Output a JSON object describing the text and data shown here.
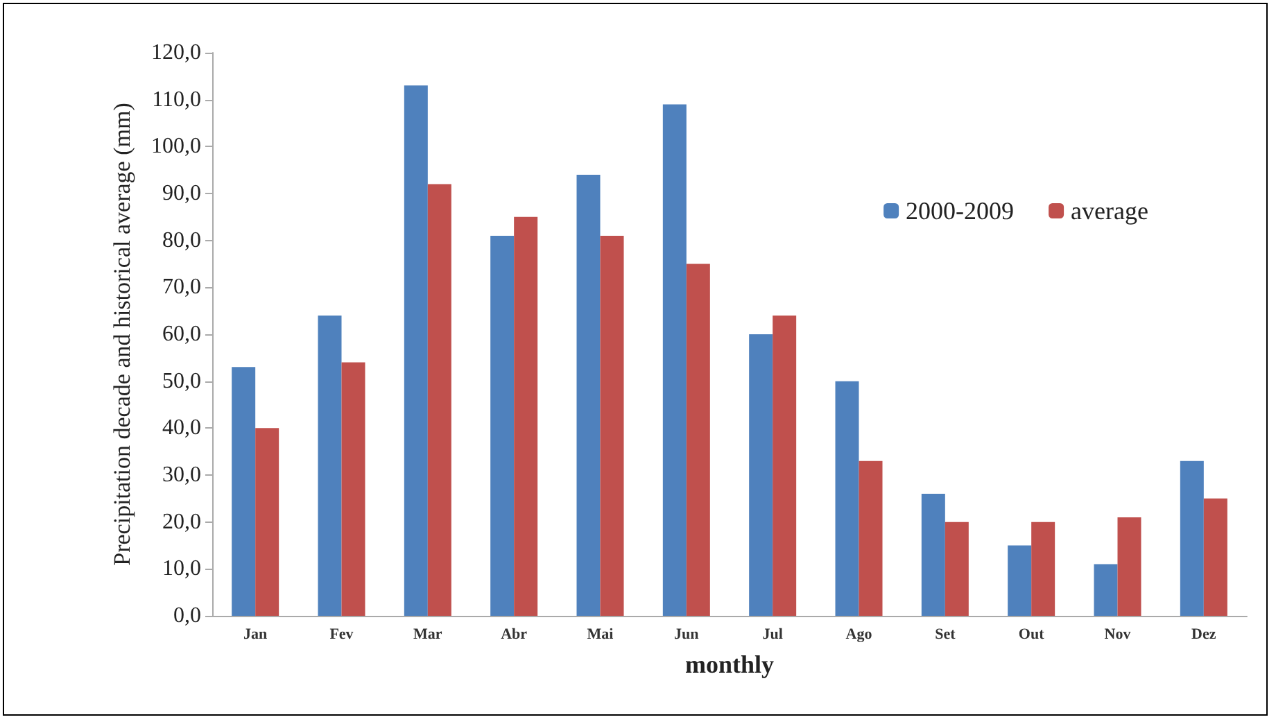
{
  "chart_data": {
    "type": "bar",
    "xlabel": "monthly",
    "ylabel": "Precipitation decade and historical average (mm)",
    "categories": [
      "Jan",
      "Fev",
      "Mar",
      "Abr",
      "Mai",
      "Jun",
      "Jul",
      "Ago",
      "Set",
      "Out",
      "Nov",
      "Dez"
    ],
    "series": [
      {
        "name": "2000-2009",
        "color": "#4f81bd",
        "values": [
          53,
          64,
          113,
          81,
          94,
          109,
          60,
          50,
          26,
          15,
          11,
          33
        ]
      },
      {
        "name": "average",
        "color": "#c0504d",
        "values": [
          40,
          54,
          92,
          85,
          81,
          75,
          64,
          33,
          20,
          20,
          21,
          25
        ]
      }
    ],
    "ylim": [
      0,
      120
    ],
    "yticks": [
      {
        "value": 0,
        "label": "0,0"
      },
      {
        "value": 10,
        "label": "10,0"
      },
      {
        "value": 20,
        "label": "20,0"
      },
      {
        "value": 30,
        "label": "30,0"
      },
      {
        "value": 40,
        "label": "40,0"
      },
      {
        "value": 50,
        "label": "50,0"
      },
      {
        "value": 60,
        "label": "60,0"
      },
      {
        "value": 70,
        "label": "70,0"
      },
      {
        "value": 80,
        "label": "80,0"
      },
      {
        "value": 90,
        "label": "90,0"
      },
      {
        "value": 100,
        "label": "100,0"
      },
      {
        "value": 110,
        "label": "110,0"
      },
      {
        "value": 120,
        "label": "120,0"
      }
    ],
    "grid": false,
    "legend": "top right"
  }
}
